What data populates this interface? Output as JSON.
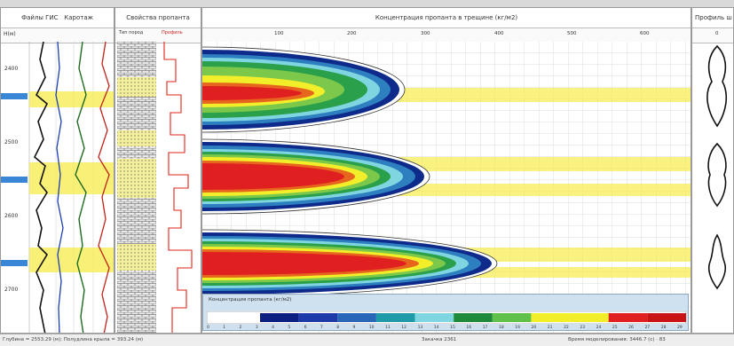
{
  "panels": {
    "logs": {
      "title": "Файлы ГИС",
      "title2": "Каротаж",
      "depth_label": "H(м)"
    },
    "rock": {
      "title": "Свойства пропанта",
      "col1": "Тип пород",
      "col2": "Профиль"
    },
    "main": {
      "title": "Концентрация пропанта в трещине (кг/м2)",
      "axis_ticks": [
        "100",
        "200",
        "300",
        "400",
        "500",
        "600"
      ]
    },
    "right": {
      "title": "Профиль ш",
      "tick": "0"
    }
  },
  "depth_ticks": [
    "2400",
    "2500",
    "2600",
    "2700"
  ],
  "legend": {
    "title": "Концентрация пропанта (кг/м2)",
    "colors": [
      "#0d1f80",
      "#1e3aa8",
      "#2a66b8",
      "#1f9aa8",
      "#7fd6e0",
      "#1f8a3a",
      "#5fc04a",
      "#f3ee2a",
      "#f3ee2a",
      "#e02020",
      "#c81414"
    ],
    "numbers": [
      "0",
      "1",
      "2",
      "3",
      "4",
      "5",
      "6",
      "7",
      "8",
      "9",
      "10",
      "11",
      "12",
      "13",
      "14",
      "15",
      "16",
      "17",
      "18",
      "19",
      "20",
      "21",
      "22",
      "23",
      "24",
      "25",
      "26",
      "27",
      "28",
      "29"
    ]
  },
  "status": {
    "left": "Глубина = 2553.29 (м); Полудлина крыла = 393.24 (м)",
    "middle": "Закачка 2361",
    "right": "Время моделирования: 3446.7 (с) · 83"
  }
}
